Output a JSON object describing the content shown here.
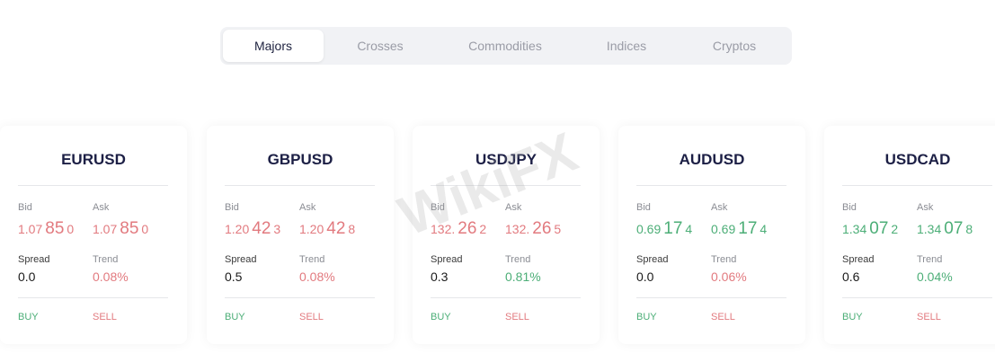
{
  "tabs": [
    {
      "label": "Majors",
      "active": true
    },
    {
      "label": "Crosses"
    },
    {
      "label": "Commodities"
    },
    {
      "label": "Indices"
    },
    {
      "label": "Cryptos"
    }
  ],
  "labels": {
    "bid": "Bid",
    "ask": "Ask",
    "spread": "Spread",
    "trend": "Trend",
    "buy": "BUY",
    "sell": "SELL"
  },
  "colors": {
    "up": "#4cae77",
    "down": "#e27a7f",
    "title": "#1c1f45"
  },
  "watermark": "WikiFX",
  "cards": [
    {
      "symbol": "EURUSD",
      "dir": "red",
      "trend_dir": "red",
      "bid": [
        "1.07",
        "85",
        "0"
      ],
      "ask": [
        "1.07",
        "85",
        "0"
      ],
      "spread": "0.0",
      "trend": "0.08%"
    },
    {
      "symbol": "GBPUSD",
      "dir": "red",
      "trend_dir": "red",
      "bid": [
        "1.20",
        "42",
        "3"
      ],
      "ask": [
        "1.20",
        "42",
        "8"
      ],
      "spread": "0.5",
      "trend": "0.08%"
    },
    {
      "symbol": "USDJPY",
      "dir": "red",
      "trend_dir": "green",
      "bid": [
        "132.",
        "26",
        "2"
      ],
      "ask": [
        "132.",
        "26",
        "5"
      ],
      "spread": "0.3",
      "trend": "0.81%"
    },
    {
      "symbol": "AUDUSD",
      "dir": "green",
      "trend_dir": "red",
      "bid": [
        "0.69",
        "17",
        "4"
      ],
      "ask": [
        "0.69",
        "17",
        "4"
      ],
      "spread": "0.0",
      "trend": "0.06%"
    },
    {
      "symbol": "USDCAD",
      "dir": "green",
      "trend_dir": "green",
      "bid": [
        "1.34",
        "07",
        "2"
      ],
      "ask": [
        "1.34",
        "07",
        "8"
      ],
      "spread": "0.6",
      "trend": "0.04%"
    }
  ]
}
